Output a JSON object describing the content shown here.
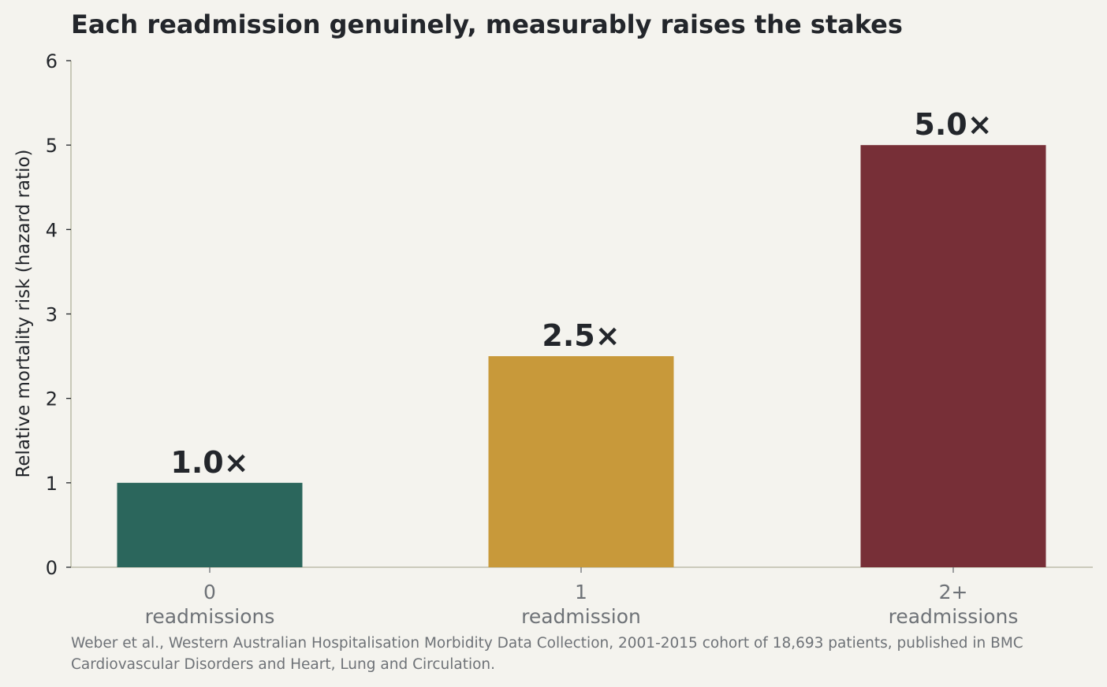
{
  "chart_data": {
    "type": "bar",
    "title": "Each readmission genuinely, measurably raises the stakes",
    "ylabel": "Relative mortality risk (hazard ratio)",
    "xlabel": "",
    "categories": [
      [
        "0",
        "readmissions"
      ],
      [
        "1",
        "readmission"
      ],
      [
        "2+",
        "readmissions"
      ]
    ],
    "values": [
      1.0,
      2.5,
      5.0
    ],
    "data_labels": [
      "1.0×",
      "2.5×",
      "5.0×"
    ],
    "colors": [
      "#2b665c",
      "#c8993a",
      "#772f37"
    ],
    "ylim": [
      0,
      6
    ],
    "yticks": [
      "0",
      "1",
      "2",
      "3",
      "4",
      "5",
      "6"
    ],
    "grid": false,
    "legend": "none"
  },
  "source_note": "Weber et al., Western Australian Hospitalisation Morbidity Data Collection, 2001-2015 cohort of 18,693 patients, published in BMC Cardiovascular Disorders and Heart, Lung and Circulation."
}
